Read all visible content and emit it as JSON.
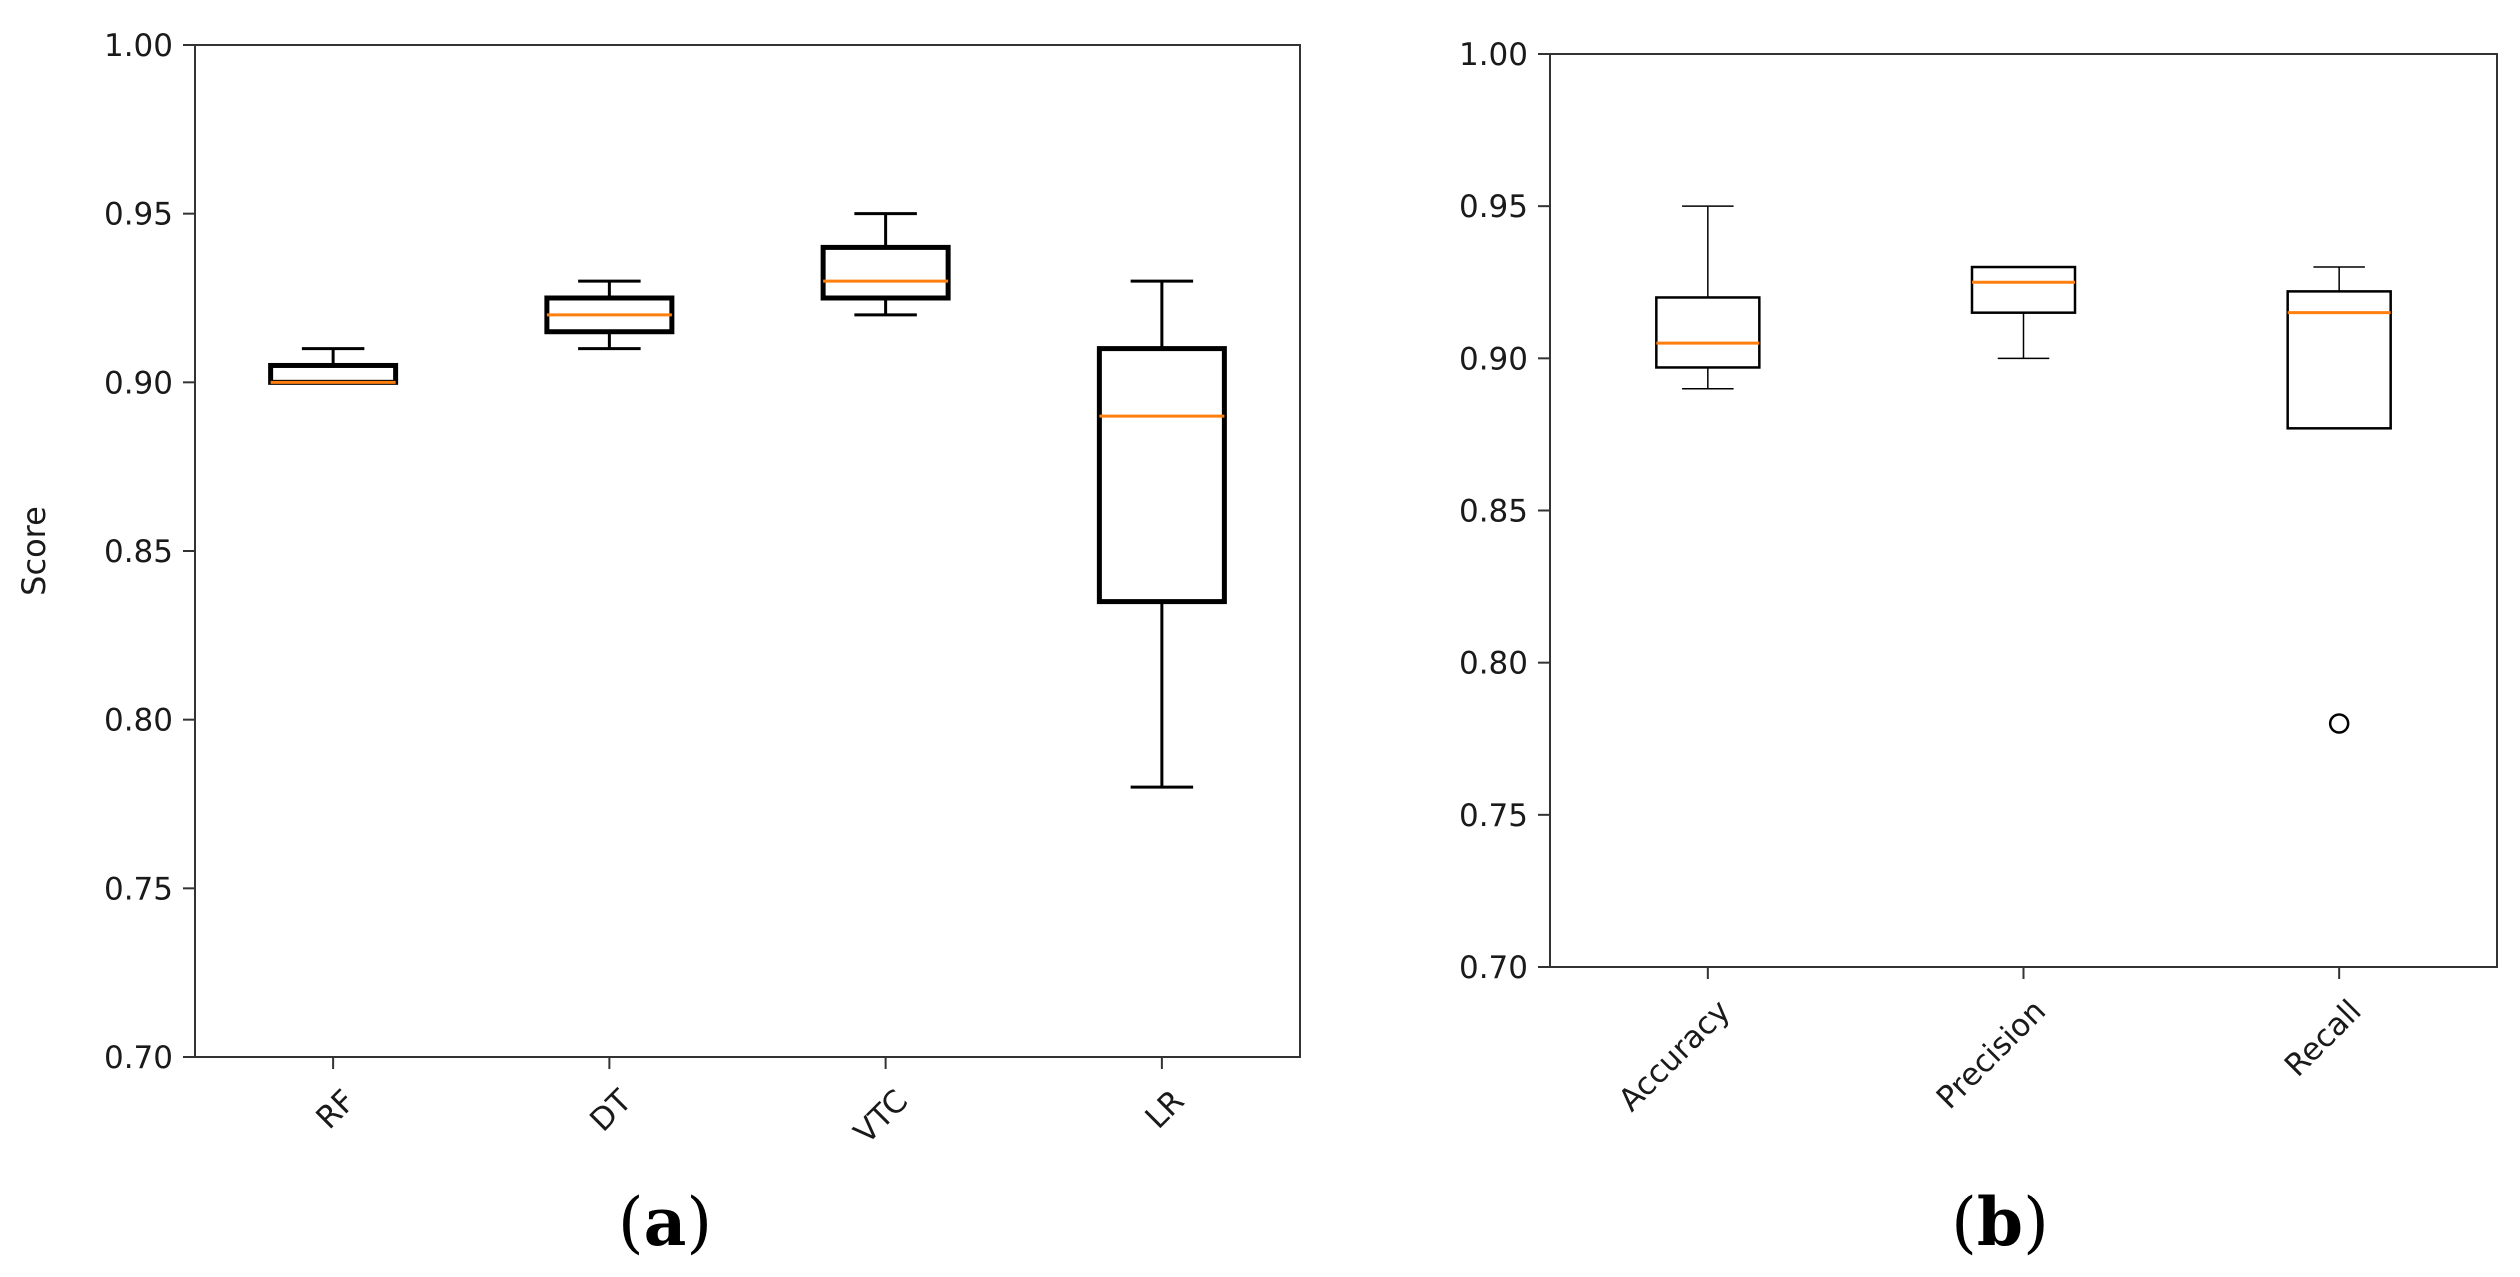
{
  "colors": {
    "box": "#000000",
    "median": "#ff7f0e",
    "axis": "#333333",
    "text": "#1a1a1a"
  },
  "chart_data": [
    {
      "id": "a",
      "type": "boxplot",
      "caption": "a",
      "title": "",
      "xlabel": "",
      "ylabel": "Score",
      "ylim": [
        0.7,
        1.0
      ],
      "yticks": [
        "0.70",
        "0.75",
        "0.80",
        "0.85",
        "0.90",
        "0.95",
        "1.00"
      ],
      "categories": [
        "RF",
        "DT",
        "VTC",
        "LR"
      ],
      "boxes": [
        {
          "name": "RF",
          "whislo": 0.9,
          "q1": 0.9,
          "med": 0.9,
          "q3": 0.905,
          "whishi": 0.91,
          "fliers": []
        },
        {
          "name": "DT",
          "whislo": 0.91,
          "q1": 0.915,
          "med": 0.92,
          "q3": 0.925,
          "whishi": 0.93,
          "fliers": []
        },
        {
          "name": "VTC",
          "whislo": 0.92,
          "q1": 0.925,
          "med": 0.93,
          "q3": 0.94,
          "whishi": 0.95,
          "fliers": []
        },
        {
          "name": "LR",
          "whislo": 0.78,
          "q1": 0.835,
          "med": 0.89,
          "q3": 0.91,
          "whishi": 0.93,
          "fliers": []
        }
      ]
    },
    {
      "id": "b",
      "type": "boxplot",
      "caption": "b",
      "title": "",
      "xlabel": "",
      "ylabel": "",
      "ylim": [
        0.7,
        1.0
      ],
      "yticks": [
        "0.70",
        "0.75",
        "0.80",
        "0.85",
        "0.90",
        "0.95",
        "1.00"
      ],
      "categories": [
        "Accuracy",
        "Precision",
        "Recall"
      ],
      "boxes": [
        {
          "name": "Accuracy",
          "whislo": 0.89,
          "q1": 0.897,
          "med": 0.905,
          "q3": 0.92,
          "whishi": 0.95,
          "fliers": []
        },
        {
          "name": "Precision",
          "whislo": 0.9,
          "q1": 0.915,
          "med": 0.925,
          "q3": 0.93,
          "whishi": 0.93,
          "fliers": []
        },
        {
          "name": "Recall",
          "whislo": 0.877,
          "q1": 0.877,
          "med": 0.915,
          "q3": 0.922,
          "whishi": 0.93,
          "fliers": [
            0.78
          ]
        }
      ]
    }
  ]
}
